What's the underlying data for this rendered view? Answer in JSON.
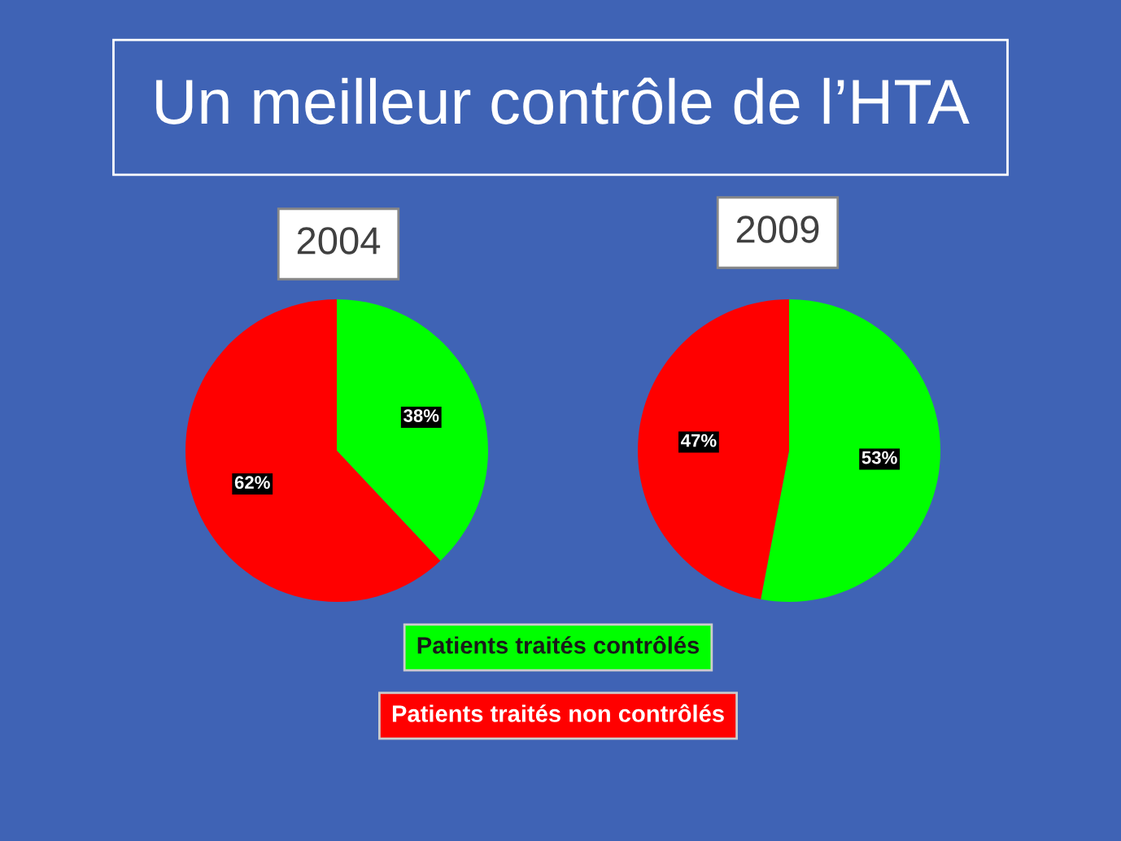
{
  "chart_data": [
    {
      "type": "pie",
      "title": "2004",
      "annotations": [
        "Un meilleur contrôle de l’HTA"
      ],
      "categories": [
        "Patients traités contrôlés",
        "Patients traités non contrôlés"
      ],
      "values": [
        38,
        62
      ],
      "value_labels": [
        "38%",
        "62%"
      ],
      "colors": [
        "#00ff00",
        "#ff0000"
      ]
    },
    {
      "type": "pie",
      "title": "2009",
      "categories": [
        null,
        null
      ],
      "values": [
        53,
        47
      ],
      "value_labels": [
        "53%",
        "47%"
      ],
      "colors": [
        "#00ff00",
        "#ff0000"
      ]
    }
  ]
}
